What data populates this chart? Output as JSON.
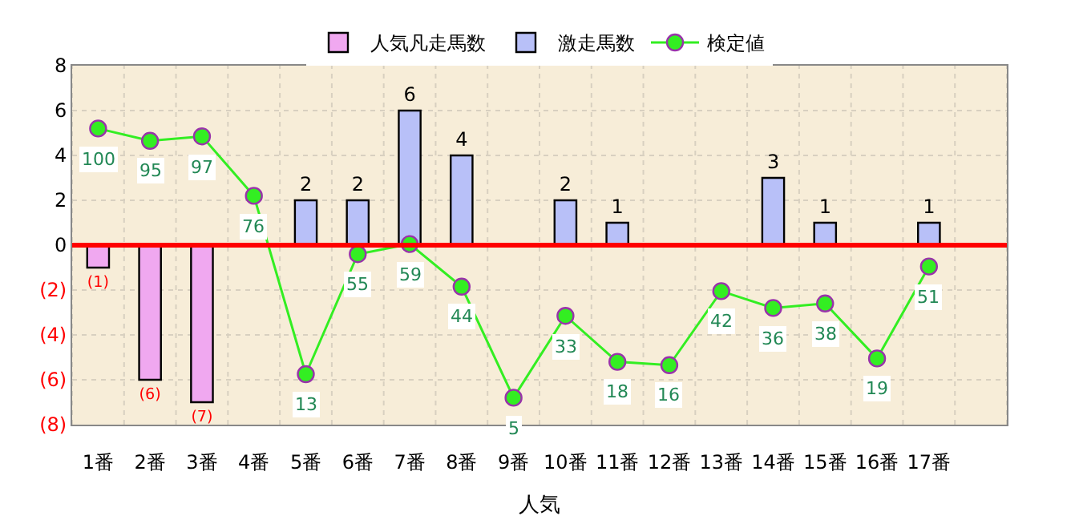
{
  "chart_data": {
    "type": "bar",
    "xlabel": "人気",
    "categories": [
      "1番",
      "2番",
      "3番",
      "4番",
      "5番",
      "6番",
      "7番",
      "8番",
      "9番",
      "10番",
      "11番",
      "12番",
      "13番",
      "14番",
      "15番",
      "16番",
      "17番",
      null
    ],
    "series": [
      {
        "name": "人気凡走馬数",
        "color": "#f0a8f0",
        "values": [
          -1,
          -6,
          -7,
          null,
          null,
          null,
          null,
          null,
          null,
          null,
          null,
          null,
          null,
          null,
          null,
          null,
          null,
          null
        ],
        "value_labels": [
          "(1)",
          "(6)",
          "(7)",
          null,
          null,
          null,
          null,
          null,
          null,
          null,
          null,
          null,
          null,
          null,
          null,
          null,
          null,
          null
        ]
      },
      {
        "name": "激走馬数",
        "color": "#b8c0f8",
        "values": [
          null,
          null,
          null,
          null,
          2,
          2,
          6,
          4,
          null,
          2,
          1,
          null,
          null,
          3,
          1,
          null,
          1,
          null
        ],
        "value_labels": [
          null,
          null,
          null,
          null,
          "2",
          "2",
          "6",
          "4",
          null,
          "2",
          "1",
          null,
          null,
          "3",
          "1",
          null,
          "1",
          null
        ]
      },
      {
        "name": "検定値",
        "type": "line",
        "color": "#33ee22",
        "marker": "circle",
        "values": [
          5.2,
          4.65,
          4.85,
          2.2,
          -5.75,
          -0.4,
          0.05,
          -1.85,
          -6.8,
          -3.15,
          -5.2,
          -5.35,
          -2.05,
          -2.8,
          -2.6,
          -5.05,
          -0.95,
          null
        ]
      }
    ],
    "annotations": [
      {
        "text": "100",
        "x": "1番",
        "y": 5.2
      },
      {
        "text": "95",
        "x": "2番",
        "y": 4.65
      },
      {
        "text": "97",
        "x": "3番",
        "y": 4.85
      },
      {
        "text": "76",
        "x": "4番",
        "y": 2.2
      },
      {
        "text": "13",
        "x": "5番",
        "y": -5.75
      },
      {
        "text": "55",
        "x": "6番",
        "y": -0.4
      },
      {
        "text": "59",
        "x": "7番",
        "y": 0.05
      },
      {
        "text": "44",
        "x": "8番",
        "y": -1.85
      },
      {
        "text": "5",
        "x": "9番",
        "y": -6.8
      },
      {
        "text": "33",
        "x": "10番",
        "y": -3.15
      },
      {
        "text": "18",
        "x": "11番",
        "y": -5.2
      },
      {
        "text": "16",
        "x": "12番",
        "y": -5.35
      },
      {
        "text": "42",
        "x": "13番",
        "y": -2.05
      },
      {
        "text": "36",
        "x": "14番",
        "y": -2.8
      },
      {
        "text": "38",
        "x": "15番",
        "y": -2.6
      },
      {
        "text": "19",
        "x": "16番",
        "y": -5.05
      },
      {
        "text": "51",
        "x": "17番",
        "y": -0.95
      }
    ],
    "ylim": [
      -8,
      8
    ],
    "yticks": [
      {
        "value": -8,
        "label": "(8)"
      },
      {
        "value": -6,
        "label": "(6)"
      },
      {
        "value": -4,
        "label": "(4)"
      },
      {
        "value": -2,
        "label": "(2)"
      },
      0,
      2,
      4,
      6,
      8
    ],
    "ref_lines": [
      {
        "axis": "y",
        "value": 0,
        "color": "#ff0000"
      }
    ],
    "grid": true,
    "legend": "top"
  }
}
